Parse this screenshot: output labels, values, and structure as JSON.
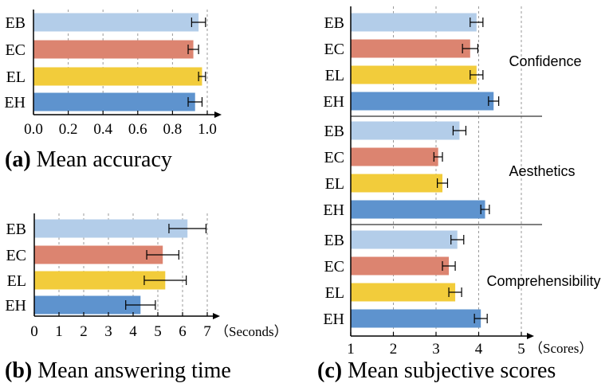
{
  "colors": {
    "EB": "#b3cde9",
    "EC": "#dc8470",
    "EL": "#f2cc3b",
    "EH": "#5e93ce",
    "axis": "#000000",
    "grid": "#9a9a9a"
  },
  "chart_data": [
    {
      "type": "bar",
      "orientation": "horizontal",
      "caption_letter": "(a)",
      "caption_text": " Mean accuracy",
      "categories": [
        "EB",
        "EC",
        "EL",
        "EH"
      ],
      "values": [
        0.95,
        0.92,
        0.97,
        0.93
      ],
      "errors": [
        0.04,
        0.03,
        0.02,
        0.04
      ],
      "xlim": [
        0,
        1.0
      ],
      "xticks": [
        "0.0",
        "0.2",
        "0.4",
        "0.6",
        "0.8",
        "1.0"
      ],
      "xlabel": "",
      "grid": "vertical dashed"
    },
    {
      "type": "bar",
      "orientation": "horizontal",
      "caption_letter": "(b)",
      "caption_text": " Mean answering time",
      "categories": [
        "EB",
        "EC",
        "EL",
        "EH"
      ],
      "values": [
        6.2,
        5.2,
        5.3,
        4.3
      ],
      "errors": [
        0.75,
        0.65,
        0.85,
        0.6
      ],
      "xlim": [
        0,
        7
      ],
      "xticks": [
        "0",
        "1",
        "2",
        "3",
        "4",
        "5",
        "6",
        "7"
      ],
      "xlabel": "（Seconds）",
      "grid": "vertical dashed"
    },
    {
      "type": "bar",
      "orientation": "horizontal",
      "caption_letter": "(c)",
      "caption_text": " Mean subjective scores",
      "xlim": [
        1,
        5
      ],
      "xticks": [
        "1",
        "2",
        "3",
        "4",
        "5"
      ],
      "xlabel": "（Scores）",
      "grid": "vertical dashed",
      "groups": [
        {
          "name": "Confidence",
          "categories": [
            "EB",
            "EC",
            "EL",
            "EH"
          ],
          "values": [
            3.95,
            3.8,
            3.95,
            4.35
          ],
          "errors": [
            0.15,
            0.18,
            0.15,
            0.12
          ]
        },
        {
          "name": "Aesthetics",
          "categories": [
            "EB",
            "EC",
            "EL",
            "EH"
          ],
          "values": [
            3.55,
            3.05,
            3.15,
            4.15
          ],
          "errors": [
            0.15,
            0.1,
            0.12,
            0.1
          ]
        },
        {
          "name": "Comprehensibility",
          "categories": [
            "EB",
            "EC",
            "EL",
            "EH"
          ],
          "values": [
            3.5,
            3.3,
            3.45,
            4.05
          ],
          "errors": [
            0.15,
            0.15,
            0.15,
            0.15
          ]
        }
      ]
    }
  ]
}
